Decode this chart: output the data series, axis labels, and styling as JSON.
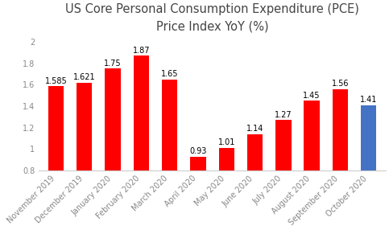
{
  "title": "US Core Personal Consumption Expenditure (PCE)\nPrice Index YoY (%)",
  "categories": [
    "November 2019",
    "December 2019",
    "January 2020",
    "February 2020",
    "March 2020",
    "April 2020",
    "May 2020",
    "June 2020",
    "July 2020",
    "August 2020",
    "September 2020",
    "October 2020"
  ],
  "values": [
    1.585,
    1.621,
    1.75,
    1.87,
    1.65,
    0.93,
    1.01,
    1.14,
    1.27,
    1.45,
    1.56,
    1.41
  ],
  "bar_colors": [
    "#FF0000",
    "#FF0000",
    "#FF0000",
    "#FF0000",
    "#FF0000",
    "#FF0000",
    "#FF0000",
    "#FF0000",
    "#FF0000",
    "#FF0000",
    "#FF0000",
    "#4472C4"
  ],
  "ylim": [
    0.8,
    2.05
  ],
  "yticks": [
    0.8,
    1.0,
    1.2,
    1.4,
    1.6,
    1.8,
    2.0
  ],
  "title_fontsize": 10.5,
  "label_fontsize": 7,
  "value_fontsize": 7,
  "tick_color": "#888888",
  "background_color": "#FFFFFF"
}
